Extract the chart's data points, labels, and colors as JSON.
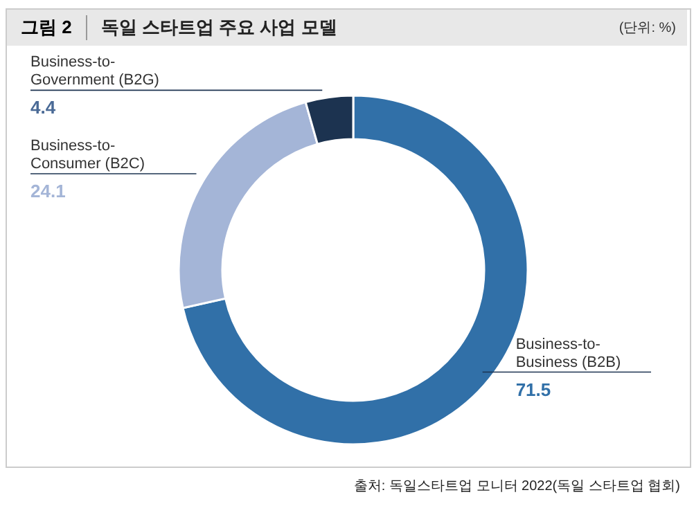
{
  "chart_data": {
    "type": "donut",
    "title": "독일 스타트업 주요 사업 모델",
    "categories": [
      "Business-to-\nBusiness (B2B)",
      "Business-to-\nConsumer (B2C)",
      "Business-to-\nGovernment (B2G)"
    ],
    "values": [
      71.5,
      24.1,
      4.4
    ],
    "colors": [
      "#3170a8",
      "#a4b5d7",
      "#1c3350"
    ],
    "data_labels": true,
    "annotations": [
      "그림 2",
      "(단위: %)",
      "출처: 독일스타트업 모니터 2022(독일 스타트업 협회)"
    ]
  }
}
